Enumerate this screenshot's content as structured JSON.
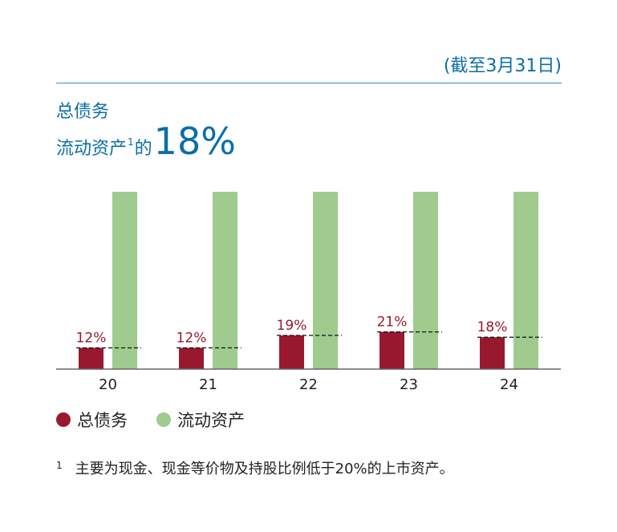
{
  "header": {
    "date_note": "(截至3月31日)"
  },
  "title": {
    "line1": "总债务",
    "line2_prefix": "流动资产",
    "line2_sup": "1",
    "line2_mid": "的",
    "line2_big": "18%"
  },
  "legend": {
    "items": [
      {
        "label": "总债务",
        "color": "#98192e"
      },
      {
        "label": "流动资产",
        "color": "#9fcb8f"
      }
    ]
  },
  "footnote": {
    "mark": "1",
    "text": "主要为现金、现金等价物及持股比例低于20%的上市资产。"
  },
  "chart_data": {
    "type": "bar",
    "categories": [
      "20",
      "21",
      "22",
      "23",
      "24"
    ],
    "series": [
      {
        "name": "总债务",
        "values": [
          12,
          12,
          19,
          21,
          18
        ],
        "color": "#98192e"
      },
      {
        "name": "流动资产",
        "values": [
          100,
          100,
          100,
          100,
          100
        ],
        "color": "#9fcb8f"
      }
    ],
    "data_labels": [
      "12%",
      "12%",
      "19%",
      "21%",
      "18%"
    ],
    "ylim": [
      0,
      100
    ],
    "grid": false
  }
}
